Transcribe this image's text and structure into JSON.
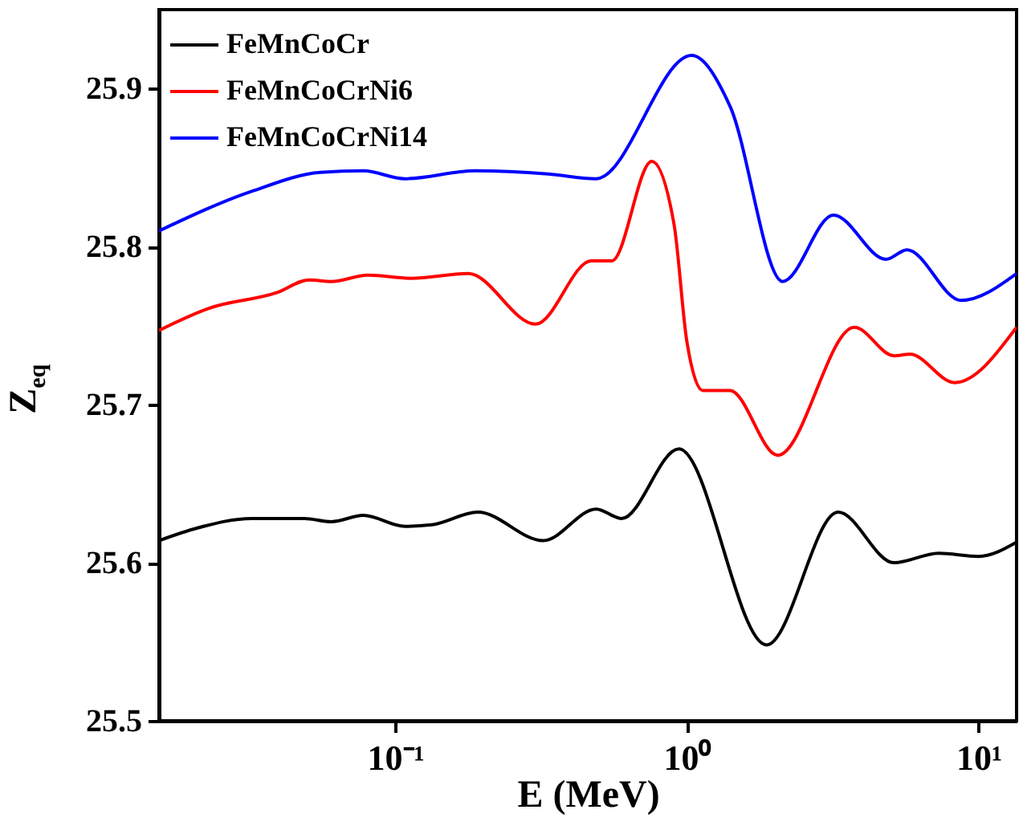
{
  "chart_data": {
    "type": "line",
    "xlabel": "E (MeV)",
    "ylabel": "Z$_{eq}$",
    "log": "x",
    "legend": "top left",
    "grid": false,
    "xlim": [
      0.0155,
      13.5
    ],
    "xticks": [
      {
        "value": 0.1,
        "label": "10⁻¹"
      },
      {
        "value": 1,
        "label": "10⁰"
      },
      {
        "value": 10,
        "label": "10¹"
      }
    ],
    "ylim": [
      25.5,
      25.95
    ],
    "yticks": [
      25.5,
      25.6,
      25.7,
      25.8,
      25.9
    ],
    "series": [
      {
        "name": "FeMnCoCr",
        "color": "#000000",
        "x": [
          0.0155,
          0.021,
          0.0322,
          0.0488,
          0.0604,
          0.0778,
          0.108,
          0.1336,
          0.192,
          0.322,
          0.489,
          0.597,
          0.939,
          1.876,
          3.3,
          5.13,
          7.3,
          10.0,
          13.5
        ],
        "values": [
          25.614,
          25.622,
          25.628,
          25.628,
          25.626,
          25.63,
          25.623,
          25.624,
          25.632,
          25.614,
          25.634,
          25.628,
          25.672,
          25.548,
          25.632,
          25.6,
          25.606,
          25.604,
          25.613
        ]
      },
      {
        "name": "FeMnCoCrNi6",
        "color": "#ff0000",
        "x": [
          0.0155,
          0.023,
          0.0394,
          0.0507,
          0.0604,
          0.0807,
          0.1135,
          0.178,
          0.303,
          0.47,
          0.553,
          0.758,
          0.904,
          1.0,
          1.134,
          1.405,
          2.05,
          3.75,
          5.13,
          5.82,
          8.28,
          13.5
        ],
        "values": [
          25.747,
          25.761,
          25.771,
          25.779,
          25.778,
          25.782,
          25.78,
          25.783,
          25.751,
          25.791,
          25.791,
          25.854,
          25.814,
          25.74,
          25.709,
          25.709,
          25.668,
          25.749,
          25.731,
          25.732,
          25.714,
          25.749
        ]
      },
      {
        "name": "FeMnCoCrNi14",
        "color": "#0000ff",
        "x": [
          0.0155,
          0.0322,
          0.0554,
          0.0778,
          0.108,
          0.1876,
          0.335,
          0.489,
          1.038,
          1.405,
          2.13,
          3.18,
          4.82,
          5.68,
          8.71,
          13.5
        ],
        "values": [
          25.81,
          25.835,
          25.847,
          25.848,
          25.843,
          25.848,
          25.846,
          25.843,
          25.921,
          25.889,
          25.778,
          25.82,
          25.792,
          25.798,
          25.766,
          25.783
        ]
      }
    ]
  }
}
